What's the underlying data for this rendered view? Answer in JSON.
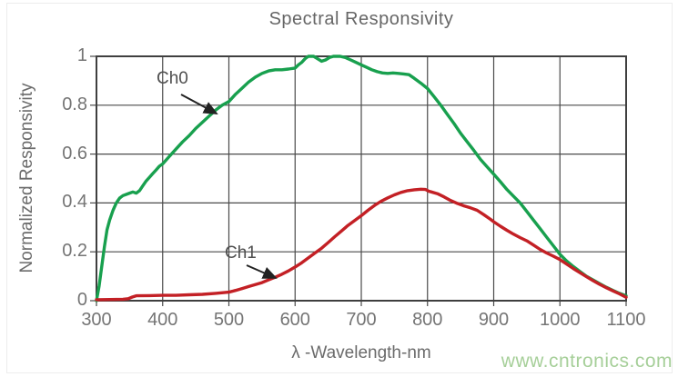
{
  "page": {
    "background": "#ffffff"
  },
  "watermark": {
    "text": "www.cntronics.com",
    "color": "#a6cf99"
  },
  "chart_data": {
    "type": "line",
    "title": "Spectral Responsivity",
    "xlabel": "λ -Wavelength-nm",
    "ylabel": "Normalized Responsivity",
    "xlim": [
      300,
      1100
    ],
    "ylim": [
      0,
      1
    ],
    "grid": true,
    "grid_color": "#4a4a4a",
    "border_color": "#3f3f3f",
    "legend_position": "none",
    "x_ticks": [
      {
        "value": 300,
        "label": "300"
      },
      {
        "value": 400,
        "label": "400"
      },
      {
        "value": 500,
        "label": "500"
      },
      {
        "value": 600,
        "label": "600"
      },
      {
        "value": 700,
        "label": "700"
      },
      {
        "value": 800,
        "label": "800"
      },
      {
        "value": 900,
        "label": "900"
      },
      {
        "value": 1000,
        "label": "1000"
      },
      {
        "value": 1100,
        "label": "1100"
      }
    ],
    "y_ticks": [
      {
        "value": 1,
        "label": "1"
      },
      {
        "value": 0.8,
        "label": "0.8"
      },
      {
        "value": 0.6,
        "label": "0.6"
      },
      {
        "value": 0.4,
        "label": "0.4"
      },
      {
        "value": 0.2,
        "label": "0.2"
      },
      {
        "value": 0,
        "label": "0"
      }
    ],
    "annotations": [
      {
        "label": "Ch0"
      },
      {
        "label": "Ch1"
      }
    ],
    "series": [
      {
        "name": "Ch0",
        "color": "#18a04e",
        "points": [
          [
            300,
            0.0
          ],
          [
            304,
            0.06
          ],
          [
            308,
            0.14
          ],
          [
            312,
            0.22
          ],
          [
            316,
            0.29
          ],
          [
            320,
            0.33
          ],
          [
            325,
            0.37
          ],
          [
            330,
            0.4
          ],
          [
            335,
            0.42
          ],
          [
            340,
            0.43
          ],
          [
            345,
            0.435
          ],
          [
            350,
            0.44
          ],
          [
            355,
            0.445
          ],
          [
            360,
            0.44
          ],
          [
            365,
            0.45
          ],
          [
            370,
            0.47
          ],
          [
            375,
            0.49
          ],
          [
            380,
            0.505
          ],
          [
            385,
            0.52
          ],
          [
            390,
            0.535
          ],
          [
            395,
            0.55
          ],
          [
            400,
            0.56
          ],
          [
            410,
            0.59
          ],
          [
            420,
            0.62
          ],
          [
            430,
            0.65
          ],
          [
            440,
            0.675
          ],
          [
            450,
            0.705
          ],
          [
            460,
            0.73
          ],
          [
            470,
            0.755
          ],
          [
            480,
            0.78
          ],
          [
            490,
            0.8
          ],
          [
            500,
            0.815
          ],
          [
            510,
            0.845
          ],
          [
            520,
            0.87
          ],
          [
            530,
            0.895
          ],
          [
            540,
            0.915
          ],
          [
            550,
            0.93
          ],
          [
            560,
            0.94
          ],
          [
            570,
            0.945
          ],
          [
            580,
            0.945
          ],
          [
            590,
            0.948
          ],
          [
            600,
            0.952
          ],
          [
            605,
            0.965
          ],
          [
            610,
            0.975
          ],
          [
            615,
            0.99
          ],
          [
            620,
            1.0
          ],
          [
            628,
            1.0
          ],
          [
            634,
            0.99
          ],
          [
            640,
            0.98
          ],
          [
            646,
            0.985
          ],
          [
            652,
            0.995
          ],
          [
            658,
            1.0
          ],
          [
            668,
            1.0
          ],
          [
            676,
            0.995
          ],
          [
            684,
            0.985
          ],
          [
            692,
            0.975
          ],
          [
            700,
            0.965
          ],
          [
            708,
            0.955
          ],
          [
            716,
            0.945
          ],
          [
            724,
            0.937
          ],
          [
            732,
            0.932
          ],
          [
            740,
            0.93
          ],
          [
            748,
            0.932
          ],
          [
            756,
            0.93
          ],
          [
            764,
            0.928
          ],
          [
            772,
            0.925
          ],
          [
            780,
            0.91
          ],
          [
            790,
            0.89
          ],
          [
            800,
            0.868
          ],
          [
            810,
            0.835
          ],
          [
            820,
            0.8
          ],
          [
            830,
            0.762
          ],
          [
            840,
            0.725
          ],
          [
            850,
            0.685
          ],
          [
            860,
            0.65
          ],
          [
            870,
            0.615
          ],
          [
            880,
            0.578
          ],
          [
            890,
            0.548
          ],
          [
            900,
            0.518
          ],
          [
            910,
            0.487
          ],
          [
            920,
            0.455
          ],
          [
            930,
            0.427
          ],
          [
            940,
            0.4
          ],
          [
            950,
            0.365
          ],
          [
            960,
            0.33
          ],
          [
            970,
            0.295
          ],
          [
            980,
            0.26
          ],
          [
            990,
            0.225
          ],
          [
            1000,
            0.19
          ],
          [
            1010,
            0.163
          ],
          [
            1020,
            0.14
          ],
          [
            1030,
            0.12
          ],
          [
            1040,
            0.1
          ],
          [
            1050,
            0.085
          ],
          [
            1060,
            0.07
          ],
          [
            1070,
            0.055
          ],
          [
            1080,
            0.042
          ],
          [
            1090,
            0.03
          ],
          [
            1100,
            0.02
          ]
        ]
      },
      {
        "name": "Ch1",
        "color": "#c32025",
        "points": [
          [
            300,
            0.004
          ],
          [
            320,
            0.005
          ],
          [
            340,
            0.006
          ],
          [
            348,
            0.008
          ],
          [
            354,
            0.015
          ],
          [
            360,
            0.02
          ],
          [
            380,
            0.021
          ],
          [
            400,
            0.022
          ],
          [
            420,
            0.022
          ],
          [
            440,
            0.024
          ],
          [
            460,
            0.026
          ],
          [
            480,
            0.03
          ],
          [
            500,
            0.035
          ],
          [
            510,
            0.042
          ],
          [
            520,
            0.05
          ],
          [
            530,
            0.058
          ],
          [
            540,
            0.066
          ],
          [
            550,
            0.074
          ],
          [
            560,
            0.085
          ],
          [
            570,
            0.096
          ],
          [
            580,
            0.108
          ],
          [
            590,
            0.122
          ],
          [
            600,
            0.138
          ],
          [
            610,
            0.155
          ],
          [
            620,
            0.175
          ],
          [
            630,
            0.195
          ],
          [
            640,
            0.215
          ],
          [
            650,
            0.238
          ],
          [
            660,
            0.262
          ],
          [
            670,
            0.285
          ],
          [
            680,
            0.308
          ],
          [
            690,
            0.328
          ],
          [
            700,
            0.348
          ],
          [
            710,
            0.37
          ],
          [
            720,
            0.39
          ],
          [
            730,
            0.407
          ],
          [
            740,
            0.421
          ],
          [
            750,
            0.433
          ],
          [
            760,
            0.443
          ],
          [
            770,
            0.45
          ],
          [
            780,
            0.454
          ],
          [
            790,
            0.456
          ],
          [
            797,
            0.455
          ],
          [
            802,
            0.448
          ],
          [
            806,
            0.445
          ],
          [
            815,
            0.438
          ],
          [
            825,
            0.425
          ],
          [
            835,
            0.41
          ],
          [
            845,
            0.398
          ],
          [
            855,
            0.388
          ],
          [
            865,
            0.38
          ],
          [
            875,
            0.37
          ],
          [
            885,
            0.352
          ],
          [
            895,
            0.333
          ],
          [
            900,
            0.323
          ],
          [
            910,
            0.305
          ],
          [
            920,
            0.288
          ],
          [
            930,
            0.272
          ],
          [
            940,
            0.258
          ],
          [
            950,
            0.245
          ],
          [
            960,
            0.228
          ],
          [
            970,
            0.21
          ],
          [
            980,
            0.195
          ],
          [
            990,
            0.182
          ],
          [
            1000,
            0.168
          ],
          [
            1010,
            0.15
          ],
          [
            1020,
            0.132
          ],
          [
            1030,
            0.115
          ],
          [
            1040,
            0.098
          ],
          [
            1050,
            0.082
          ],
          [
            1060,
            0.067
          ],
          [
            1070,
            0.053
          ],
          [
            1080,
            0.04
          ],
          [
            1090,
            0.028
          ],
          [
            1100,
            0.014
          ]
        ]
      }
    ]
  }
}
